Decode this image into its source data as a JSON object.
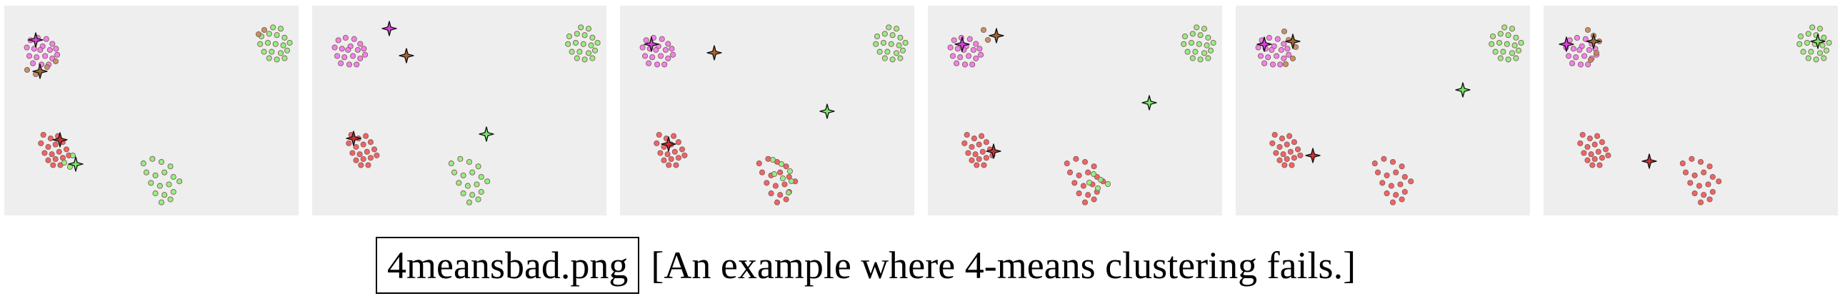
{
  "caption": {
    "filename": "4meansbad.png",
    "text": "[An example where 4-means clustering fails.]"
  },
  "colors": {
    "panel_bg": "#eeeeee",
    "magenta": "#ee77ee",
    "brown": "#bb8855",
    "red": "#ee5555",
    "green": "#88ee77",
    "magenta_center": "#dd44dd",
    "brown_center": "#aa6633",
    "red_center": "#cc3333",
    "green_center": "#77ee66"
  },
  "blobs": {
    "A": [
      [
        -18,
        -16
      ],
      [
        -6,
        -20
      ],
      [
        8,
        -18
      ],
      [
        18,
        -10
      ],
      [
        -24,
        -4
      ],
      [
        -12,
        -2
      ],
      [
        2,
        -6
      ],
      [
        14,
        0
      ],
      [
        24,
        -2
      ],
      [
        -20,
        10
      ],
      [
        -8,
        12
      ],
      [
        6,
        10
      ],
      [
        18,
        14
      ],
      [
        -14,
        22
      ],
      [
        0,
        24
      ],
      [
        12,
        24
      ],
      [
        26,
        8
      ],
      [
        -2,
        0
      ]
    ],
    "B": [
      [
        -20,
        -10
      ],
      [
        -8,
        -14
      ],
      [
        4,
        -12
      ],
      [
        16,
        -8
      ],
      [
        -22,
        2
      ],
      [
        -10,
        0
      ],
      [
        2,
        2
      ],
      [
        14,
        4
      ],
      [
        24,
        0
      ],
      [
        -16,
        14
      ],
      [
        -4,
        14
      ],
      [
        10,
        16
      ],
      [
        20,
        12
      ],
      [
        -8,
        24
      ],
      [
        4,
        26
      ],
      [
        16,
        24
      ],
      [
        -2,
        -24
      ],
      [
        10,
        -22
      ]
    ],
    "C": [
      [
        -18,
        -20
      ],
      [
        -6,
        -14
      ],
      [
        6,
        -18
      ],
      [
        -22,
        -6
      ],
      [
        -10,
        0
      ],
      [
        2,
        -4
      ],
      [
        14,
        -8
      ],
      [
        -16,
        10
      ],
      [
        -4,
        12
      ],
      [
        8,
        8
      ],
      [
        20,
        4
      ],
      [
        -10,
        22
      ],
      [
        2,
        20
      ],
      [
        14,
        18
      ],
      [
        24,
        14
      ],
      [
        -2,
        30
      ],
      [
        10,
        30
      ]
    ],
    "D": [
      [
        -24,
        -18
      ],
      [
        -12,
        -24
      ],
      [
        0,
        -20
      ],
      [
        12,
        -14
      ],
      [
        -20,
        -6
      ],
      [
        -8,
        -2
      ],
      [
        4,
        -6
      ],
      [
        16,
        0
      ],
      [
        24,
        6
      ],
      [
        -14,
        8
      ],
      [
        -2,
        12
      ],
      [
        10,
        10
      ],
      [
        -8,
        22
      ],
      [
        4,
        24
      ],
      [
        16,
        20
      ],
      [
        0,
        34
      ],
      [
        12,
        30
      ]
    ]
  },
  "panels": [
    {
      "points": [
        {
          "blob": "A",
          "cx": 52,
          "cy": 62,
          "s": 0.85,
          "color": "magenta"
        },
        {
          "blob": "B",
          "cx": 378,
          "cy": 52,
          "s": 0.9,
          "color": "green"
        },
        {
          "blob": "C",
          "cx": 70,
          "cy": 198,
          "s": 0.85,
          "color": "red"
        },
        {
          "blob": "D",
          "cx": 220,
          "cy": 240,
          "s": 1.05,
          "color": "green"
        }
      ],
      "recolor": [
        {
          "x": 32,
          "y": 90,
          "color": "brown"
        },
        {
          "x": 44,
          "y": 96,
          "color": "brown"
        },
        {
          "x": 60,
          "y": 86,
          "color": "brown"
        },
        {
          "x": 72,
          "y": 78,
          "color": "brown"
        },
        {
          "x": 356,
          "y": 40,
          "color": "brown"
        },
        {
          "x": 364,
          "y": 34,
          "color": "brown"
        },
        {
          "x": 84,
          "y": 220,
          "color": "green"
        },
        {
          "x": 96,
          "y": 210,
          "color": "green"
        },
        {
          "x": 92,
          "y": 226,
          "color": "green"
        }
      ],
      "centers": [
        {
          "x": 44,
          "y": 48,
          "color": "magenta_center"
        },
        {
          "x": 50,
          "y": 92,
          "color": "brown_center"
        },
        {
          "x": 78,
          "y": 188,
          "color": "red_center"
        },
        {
          "x": 100,
          "y": 222,
          "color": "green_center"
        }
      ]
    },
    {
      "points": [
        {
          "blob": "A",
          "cx": 52,
          "cy": 62,
          "s": 0.85,
          "color": "magenta"
        },
        {
          "blob": "B",
          "cx": 378,
          "cy": 52,
          "s": 0.9,
          "color": "green"
        },
        {
          "blob": "C",
          "cx": 70,
          "cy": 198,
          "s": 0.85,
          "color": "red"
        },
        {
          "blob": "D",
          "cx": 220,
          "cy": 240,
          "s": 1.05,
          "color": "green"
        }
      ],
      "recolor": [],
      "centers": [
        {
          "x": 108,
          "y": 32,
          "color": "magenta_center"
        },
        {
          "x": 132,
          "y": 70,
          "color": "brown_center"
        },
        {
          "x": 58,
          "y": 186,
          "color": "red_center"
        },
        {
          "x": 244,
          "y": 180,
          "color": "green_center"
        }
      ]
    },
    {
      "points": [
        {
          "blob": "A",
          "cx": 52,
          "cy": 62,
          "s": 0.85,
          "color": "magenta"
        },
        {
          "blob": "B",
          "cx": 378,
          "cy": 52,
          "s": 0.9,
          "color": "green"
        },
        {
          "blob": "C",
          "cx": 70,
          "cy": 198,
          "s": 0.85,
          "color": "red"
        },
        {
          "blob": "D",
          "cx": 220,
          "cy": 240,
          "s": 1.05,
          "color": "red"
        }
      ],
      "recolor": [
        {
          "x": 214,
          "y": 216,
          "color": "green"
        },
        {
          "x": 226,
          "y": 222,
          "color": "green"
        },
        {
          "x": 238,
          "y": 232,
          "color": "green"
        },
        {
          "x": 228,
          "y": 242,
          "color": "green"
        },
        {
          "x": 240,
          "y": 246,
          "color": "green"
        },
        {
          "x": 216,
          "y": 236,
          "color": "green"
        },
        {
          "x": 236,
          "y": 262,
          "color": "green"
        }
      ],
      "centers": [
        {
          "x": 44,
          "y": 54,
          "color": "magenta_center"
        },
        {
          "x": 132,
          "y": 66,
          "color": "brown_center"
        },
        {
          "x": 68,
          "y": 194,
          "color": "red_center"
        },
        {
          "x": 290,
          "y": 148,
          "color": "green_center"
        }
      ]
    },
    {
      "points": [
        {
          "blob": "A",
          "cx": 52,
          "cy": 62,
          "s": 0.85,
          "color": "magenta"
        },
        {
          "blob": "B",
          "cx": 378,
          "cy": 52,
          "s": 0.9,
          "color": "green"
        },
        {
          "blob": "C",
          "cx": 70,
          "cy": 198,
          "s": 0.85,
          "color": "red"
        },
        {
          "blob": "D",
          "cx": 220,
          "cy": 240,
          "s": 1.05,
          "color": "red"
        }
      ],
      "recolor": [
        {
          "x": 232,
          "y": 236,
          "color": "green"
        },
        {
          "x": 242,
          "y": 244,
          "color": "green"
        },
        {
          "x": 226,
          "y": 248,
          "color": "green"
        },
        {
          "x": 238,
          "y": 256,
          "color": "green"
        },
        {
          "x": 252,
          "y": 250,
          "color": "green"
        },
        {
          "x": 78,
          "y": 34,
          "color": "brown"
        },
        {
          "x": 84,
          "y": 48,
          "color": "brown"
        }
      ],
      "centers": [
        {
          "x": 48,
          "y": 54,
          "color": "magenta_center"
        },
        {
          "x": 96,
          "y": 42,
          "color": "brown_center"
        },
        {
          "x": 92,
          "y": 204,
          "color": "red_center"
        },
        {
          "x": 310,
          "y": 136,
          "color": "green_center"
        }
      ]
    },
    {
      "points": [
        {
          "blob": "A",
          "cx": 52,
          "cy": 62,
          "s": 0.85,
          "color": "magenta"
        },
        {
          "blob": "B",
          "cx": 378,
          "cy": 52,
          "s": 0.9,
          "color": "green"
        },
        {
          "blob": "C",
          "cx": 70,
          "cy": 198,
          "s": 0.85,
          "color": "red"
        },
        {
          "blob": "D",
          "cx": 220,
          "cy": 240,
          "s": 1.05,
          "color": "red"
        }
      ],
      "recolor": [
        {
          "x": 68,
          "y": 36,
          "color": "brown"
        },
        {
          "x": 74,
          "y": 48,
          "color": "brown"
        },
        {
          "x": 84,
          "y": 58,
          "color": "brown"
        },
        {
          "x": 80,
          "y": 74,
          "color": "brown"
        },
        {
          "x": 70,
          "y": 82,
          "color": "brown"
        }
      ],
      "centers": [
        {
          "x": 40,
          "y": 54,
          "color": "magenta_center"
        },
        {
          "x": 80,
          "y": 50,
          "color": "brown_center"
        },
        {
          "x": 108,
          "y": 210,
          "color": "red_center"
        },
        {
          "x": 318,
          "y": 118,
          "color": "green_center"
        }
      ]
    },
    {
      "points": [
        {
          "blob": "A",
          "cx": 52,
          "cy": 62,
          "s": 0.85,
          "color": "magenta"
        },
        {
          "blob": "B",
          "cx": 378,
          "cy": 52,
          "s": 0.9,
          "color": "green"
        },
        {
          "blob": "C",
          "cx": 70,
          "cy": 198,
          "s": 0.85,
          "color": "red"
        },
        {
          "blob": "D",
          "cx": 220,
          "cy": 240,
          "s": 1.05,
          "color": "red"
        }
      ],
      "recolor": [
        {
          "x": 62,
          "y": 34,
          "color": "brown"
        },
        {
          "x": 70,
          "y": 42,
          "color": "brown"
        },
        {
          "x": 78,
          "y": 50,
          "color": "brown"
        },
        {
          "x": 74,
          "y": 66,
          "color": "brown"
        },
        {
          "x": 66,
          "y": 76,
          "color": "brown"
        }
      ],
      "centers": [
        {
          "x": 32,
          "y": 54,
          "color": "magenta_center"
        },
        {
          "x": 70,
          "y": 50,
          "color": "brown_center"
        },
        {
          "x": 148,
          "y": 218,
          "color": "red_center"
        },
        {
          "x": 384,
          "y": 50,
          "color": "green_center"
        }
      ]
    }
  ]
}
